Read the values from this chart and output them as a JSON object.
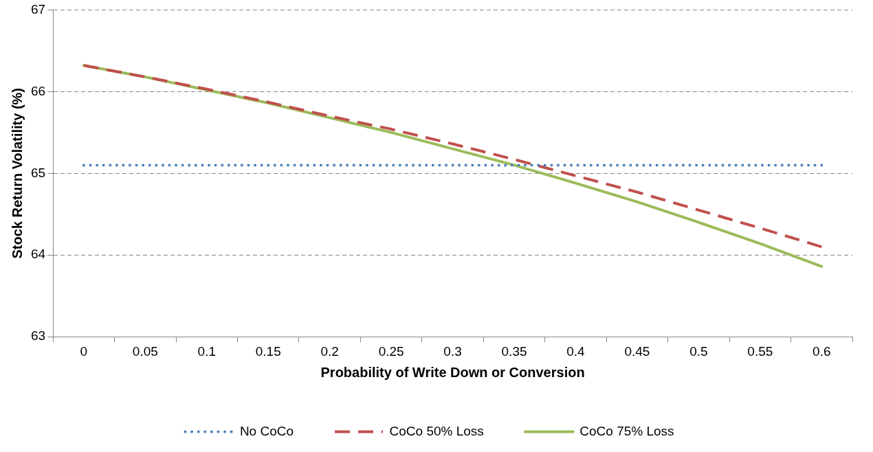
{
  "chart_data": {
    "type": "line",
    "xlabel": "Probability of Write Down or Conversion",
    "ylabel": "Stock Return Volatility (%)",
    "categories": [
      "0",
      "0.05",
      "0.1",
      "0.15",
      "0.2",
      "0.25",
      "0.3",
      "0.35",
      "0.4",
      "0.45",
      "0.5",
      "0.55",
      "0.6"
    ],
    "series": [
      {
        "name": "No CoCo",
        "color": "#4f81bd",
        "line_style": "dotted",
        "values": [
          65.1,
          65.1,
          65.1,
          65.1,
          65.1,
          65.1,
          65.1,
          65.1,
          65.1,
          65.1,
          65.1,
          65.1,
          65.1
        ]
      },
      {
        "name": "CoCo 50% Loss",
        "color": "#c0504d",
        "line_style": "dashed",
        "values": [
          66.32,
          66.18,
          66.03,
          65.87,
          65.7,
          65.54,
          65.36,
          65.17,
          64.97,
          64.77,
          64.55,
          64.33,
          64.1
        ]
      },
      {
        "name": "CoCo 75% Loss",
        "color": "#9bbb59",
        "line_style": "solid",
        "values": [
          66.32,
          66.18,
          66.02,
          65.86,
          65.68,
          65.5,
          65.3,
          65.1,
          64.88,
          64.65,
          64.4,
          64.14,
          63.86
        ]
      }
    ],
    "ylim": [
      63,
      67
    ],
    "yticks": [
      63,
      64,
      65,
      66,
      67
    ],
    "grid": "y",
    "legend": "bottom",
    "marker": "none"
  }
}
